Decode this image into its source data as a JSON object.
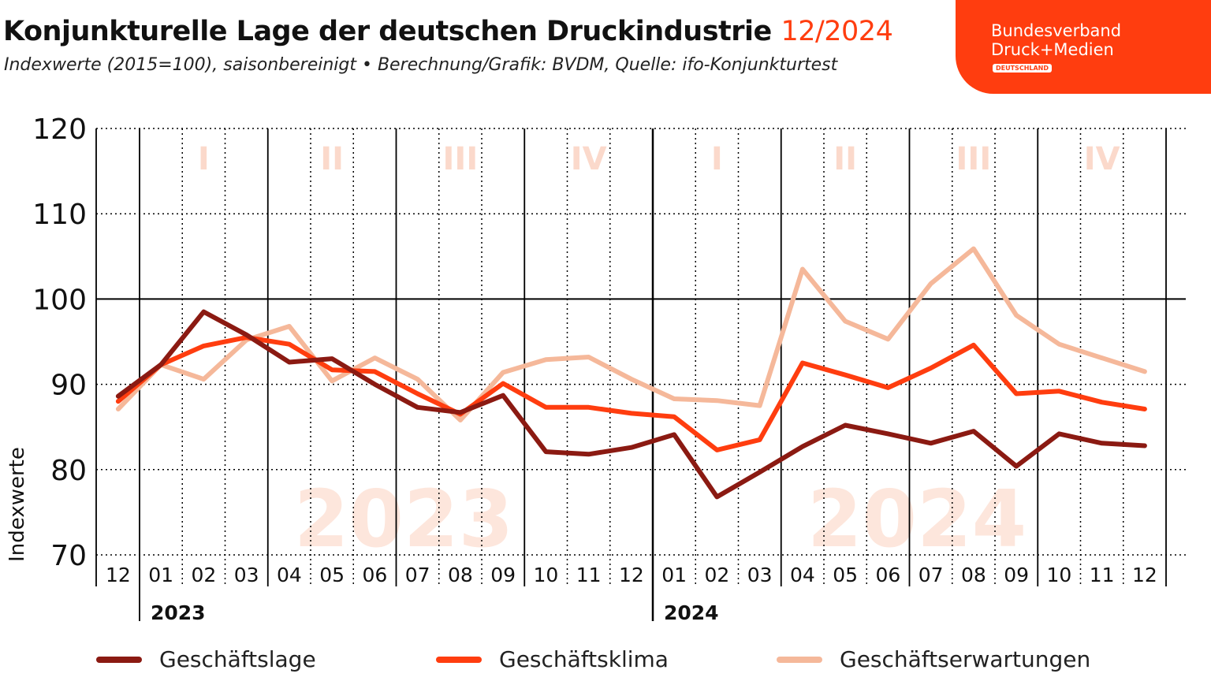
{
  "header": {
    "title": "Konjunkturelle Lage der deutschen Druckindustrie",
    "title_date": "12/2024",
    "subtitle": "Indexwerte (2015=100), saisonbereinigt • Berechnung/Grafik: BVDM, Quelle: ifo-Konjunkturtest"
  },
  "logo": {
    "line1": "Bundesverband",
    "line2": "Druck+Medien",
    "badge": "DEUTSCHLAND"
  },
  "colors": {
    "accent": "#ff3d0f",
    "geschaeftslage": "#8b1a12",
    "geschaeftsklima": "#ff3d0f",
    "geschaeftserwartungen": "#f5b89a"
  },
  "chart_data": {
    "type": "line",
    "ylabel": "Indexwerte",
    "ylim": [
      70,
      120
    ],
    "yticks": [
      "70",
      "80",
      "90",
      "100",
      "110",
      "120"
    ],
    "reference_line": 100,
    "grid": true,
    "legend_position": "bottom",
    "categories": [
      "12",
      "01",
      "02",
      "03",
      "04",
      "05",
      "06",
      "07",
      "08",
      "09",
      "10",
      "11",
      "12",
      "01",
      "02",
      "03",
      "04",
      "05",
      "06",
      "07",
      "08",
      "09",
      "10",
      "11",
      "12"
    ],
    "years": [
      "2023",
      "2024"
    ],
    "quarters": [
      "I",
      "II",
      "III",
      "IV",
      "I",
      "II",
      "III",
      "IV"
    ],
    "watermarks": [
      "2023",
      "2024"
    ],
    "series": [
      {
        "name": "Geschäftslage",
        "values": [
          88.6,
          92.3,
          98.5,
          95.8,
          92.6,
          93.0,
          90.0,
          87.3,
          86.7,
          88.7,
          82.1,
          81.8,
          82.6,
          84.1,
          76.8,
          79.7,
          82.7,
          85.2,
          84.2,
          83.1,
          84.5,
          80.4,
          84.2,
          83.1,
          82.8
        ]
      },
      {
        "name": "Geschäftsklima",
        "values": [
          88.0,
          92.3,
          94.5,
          95.5,
          94.7,
          91.7,
          91.5,
          88.9,
          86.5,
          90.1,
          87.3,
          87.3,
          86.6,
          86.2,
          82.3,
          83.5,
          92.5,
          91.1,
          89.6,
          91.9,
          94.6,
          88.9,
          89.2,
          87.9,
          87.1
        ]
      },
      {
        "name": "Geschäftserwartungen",
        "values": [
          87.1,
          92.3,
          90.6,
          95.2,
          96.8,
          90.4,
          93.1,
          90.6,
          85.8,
          91.4,
          92.9,
          93.2,
          90.6,
          88.3,
          88.1,
          87.5,
          103.5,
          97.4,
          95.3,
          101.8,
          105.9,
          98.1,
          94.7,
          93.1,
          91.5
        ]
      }
    ]
  }
}
